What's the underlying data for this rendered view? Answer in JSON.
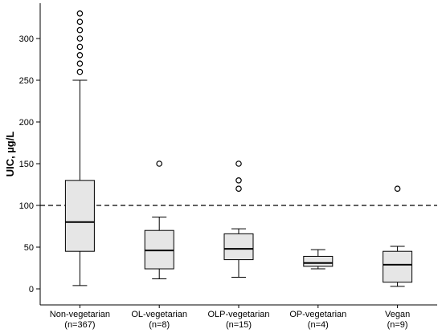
{
  "chart_data": {
    "type": "boxplot",
    "ylabel": "UIC, µg/L",
    "xlabel": "",
    "ylim": [
      -20,
      340
    ],
    "yticks": [
      0,
      50,
      100,
      150,
      200,
      250,
      300
    ],
    "reference_line": {
      "y": 100,
      "style": "dashed"
    },
    "box_color": "#e6e6e6",
    "groups": [
      {
        "name": "Non-vegetarian",
        "n_label": "(n=367)",
        "whisker_low": 4,
        "q1": 45,
        "median": 80,
        "q3": 130,
        "whisker_high": 250,
        "outliers": [
          260,
          270,
          280,
          290,
          300,
          310,
          320,
          330
        ]
      },
      {
        "name": "OL-vegetarian",
        "n_label": "(n=8)",
        "whisker_low": 12,
        "q1": 24,
        "median": 46,
        "q3": 70,
        "whisker_high": 86,
        "outliers": [
          150
        ]
      },
      {
        "name": "OLP-vegetarian",
        "n_label": "(n=15)",
        "whisker_low": 14,
        "q1": 35,
        "median": 48,
        "q3": 66,
        "whisker_high": 72,
        "outliers": [
          120,
          130,
          150
        ]
      },
      {
        "name": "OP-vegetarian",
        "n_label": "(n=4)",
        "whisker_low": 24,
        "q1": 27,
        "median": 31,
        "q3": 39,
        "whisker_high": 47,
        "outliers": []
      },
      {
        "name": "Vegan",
        "n_label": "(n=9)",
        "whisker_low": 3,
        "q1": 8,
        "median": 29,
        "q3": 45,
        "whisker_high": 51,
        "outliers": [
          120
        ]
      }
    ]
  }
}
